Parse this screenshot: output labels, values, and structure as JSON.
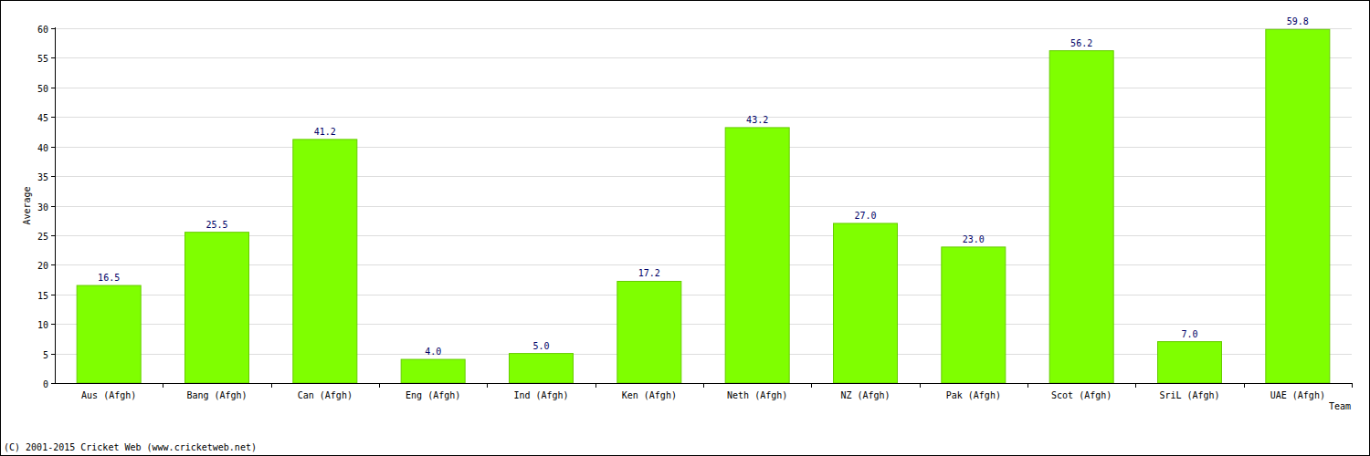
{
  "chart_data": {
    "type": "bar",
    "x_label": "Team",
    "y_label": "Average",
    "categories": [
      "Aus (Afgh)",
      "Bang (Afgh)",
      "Can (Afgh)",
      "Eng (Afgh)",
      "Ind (Afgh)",
      "Ken (Afgh)",
      "Neth (Afgh)",
      "NZ (Afgh)",
      "Pak (Afgh)",
      "Scot (Afgh)",
      "SriL (Afgh)",
      "UAE (Afgh)"
    ],
    "values": [
      16.5,
      25.5,
      41.2,
      4.0,
      5.0,
      17.2,
      43.2,
      27.0,
      23.0,
      56.2,
      7.0,
      59.8
    ],
    "value_labels": [
      "16.5",
      "25.5",
      "41.2",
      "4.0",
      "5.0",
      "17.2",
      "43.2",
      "27.0",
      "23.0",
      "56.2",
      "7.0",
      "59.8"
    ],
    "data_labels": true,
    "color": "#7fff00",
    "ylim": [
      0,
      60
    ],
    "yticks": [
      0,
      5,
      10,
      15,
      20,
      25,
      30,
      35,
      40,
      45,
      50,
      55,
      60
    ],
    "grid": true,
    "annotations": [
      "(C) 2001-2015 Cricket Web (www.cricketweb.net)"
    ]
  }
}
